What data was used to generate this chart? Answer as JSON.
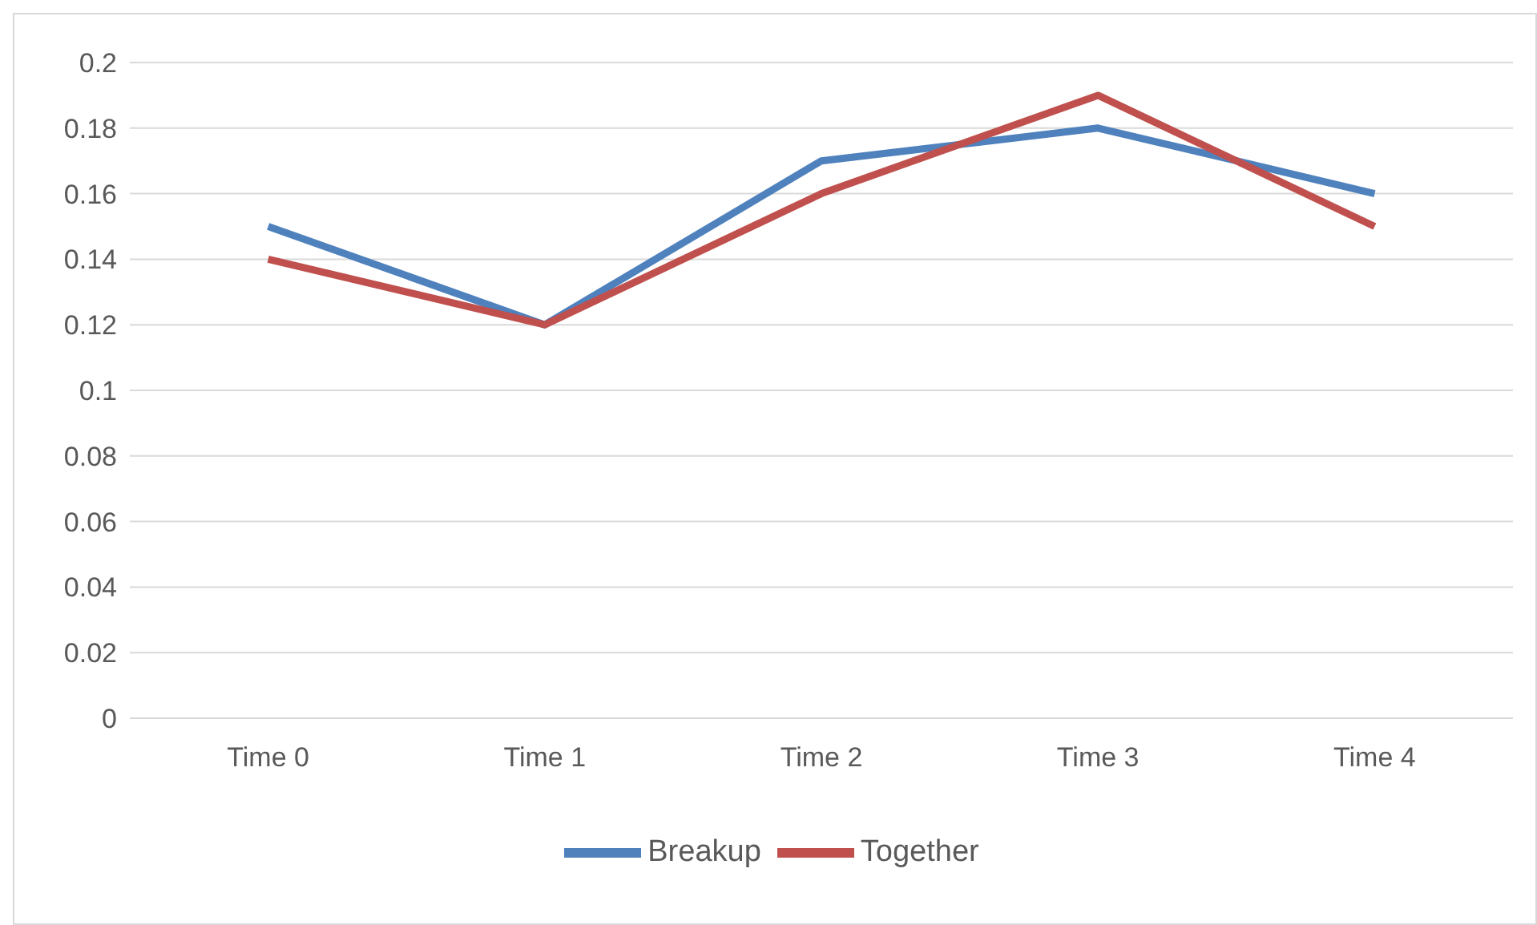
{
  "chart_data": {
    "type": "line",
    "categories": [
      "Time 0",
      "Time 1",
      "Time 2",
      "Time 3",
      "Time 4"
    ],
    "series": [
      {
        "name": "Breakup",
        "color": "#4f81bd",
        "values": [
          0.15,
          0.12,
          0.17,
          0.18,
          0.16
        ]
      },
      {
        "name": "Together",
        "color": "#c0504d",
        "values": [
          0.14,
          0.12,
          0.16,
          0.19,
          0.15
        ]
      }
    ],
    "ylim": [
      0,
      0.2
    ],
    "yticks": [
      0,
      0.02,
      0.04,
      0.06,
      0.08,
      0.1,
      0.12,
      0.14,
      0.16,
      0.18,
      0.2
    ],
    "grid": "y",
    "legend": "bottom",
    "marker": "none",
    "line_style": "solid"
  }
}
